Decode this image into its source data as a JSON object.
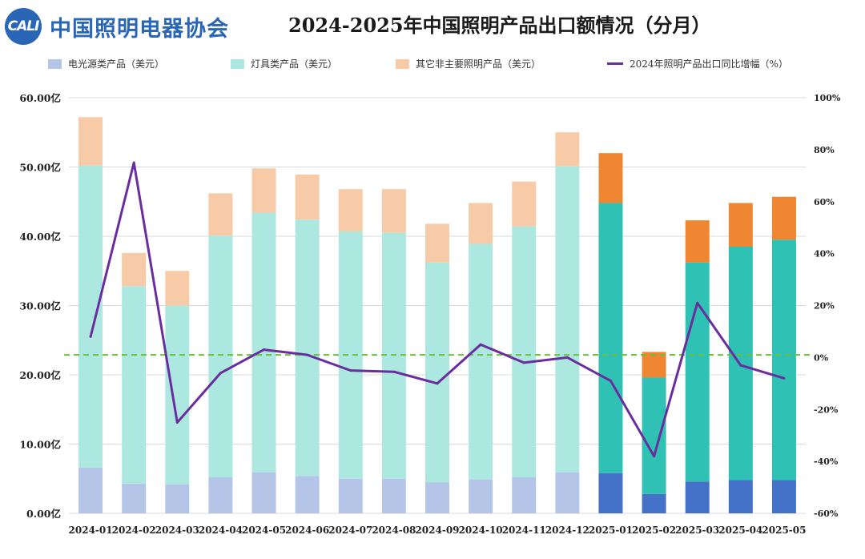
{
  "logo": {
    "badge": "CALI",
    "name": "中国照明电器协会"
  },
  "title": "2024-2025年中国照明产品出口额情况（分月）",
  "legend": {
    "light_source": "电光源类产品（美元）",
    "fixtures": "灯具类产品（美元）",
    "other": "其它非主要照明产品（美元）",
    "growth": "2024年照明产品出口同比增幅（%）"
  },
  "colors": {
    "light_source_2024": "#b4c5e8",
    "fixtures_2024": "#ade8e0",
    "other_2024": "#f7cba8",
    "light_source_2025": "#4472c9",
    "fixtures_2025": "#2fc1b4",
    "other_2025": "#ef8632",
    "growth_line": "#6a2d9e",
    "reference_line": "#6cbf3c"
  },
  "chart_data": {
    "type": "bar",
    "stacked": true,
    "title": "2024-2025年中国照明产品出口额情况（分月）",
    "categories": [
      "2024-01",
      "2024-02",
      "2024-03",
      "2024-04",
      "2024-05",
      "2024-06",
      "2024-07",
      "2024-08",
      "2024-09",
      "2024-10",
      "2024-11",
      "2024-12",
      "2025-01",
      "2025-02",
      "2025-03",
      "2025-04",
      "2025-05"
    ],
    "y_ticks": [
      "0.00亿",
      "10.00亿",
      "20.00亿",
      "30.00亿",
      "40.00亿",
      "50.00亿",
      "60.00亿"
    ],
    "y2_ticks": [
      "-60%",
      "-40%",
      "-20%",
      "0%",
      "20%",
      "40%",
      "60%",
      "80%",
      "100%"
    ],
    "ylim": [
      0,
      60
    ],
    "y2lim": [
      -60,
      100
    ],
    "series": [
      {
        "name": "电光源类产品（美元）",
        "key": "light_source",
        "values": [
          6.6,
          4.3,
          4.2,
          5.2,
          5.9,
          5.4,
          5.0,
          5.0,
          4.5,
          4.9,
          5.2,
          5.9,
          5.8,
          2.8,
          4.6,
          4.8,
          4.8
        ]
      },
      {
        "name": "灯具类产品（美元）",
        "key": "fixtures",
        "values": [
          43.6,
          28.5,
          25.8,
          34.9,
          37.5,
          37.0,
          35.7,
          35.5,
          31.7,
          34.0,
          36.2,
          44.2,
          39.0,
          16.8,
          31.6,
          33.7,
          34.7
        ]
      },
      {
        "name": "其它非主要照明产品（美元）",
        "key": "other",
        "values": [
          7.0,
          4.8,
          5.0,
          6.1,
          6.4,
          6.5,
          6.1,
          6.3,
          5.6,
          5.9,
          6.5,
          4.9,
          7.2,
          3.7,
          6.1,
          6.3,
          6.2
        ]
      }
    ],
    "line_series": {
      "name": "2024年照明产品出口同比增幅（%）",
      "axis": "right",
      "values": [
        8,
        75,
        -25,
        -6,
        3,
        1,
        -5,
        -5.5,
        -10,
        5,
        -2,
        0,
        -9,
        -38,
        21,
        -3,
        -8
      ]
    },
    "reference_line": {
      "axis": "right",
      "value": 1
    }
  }
}
